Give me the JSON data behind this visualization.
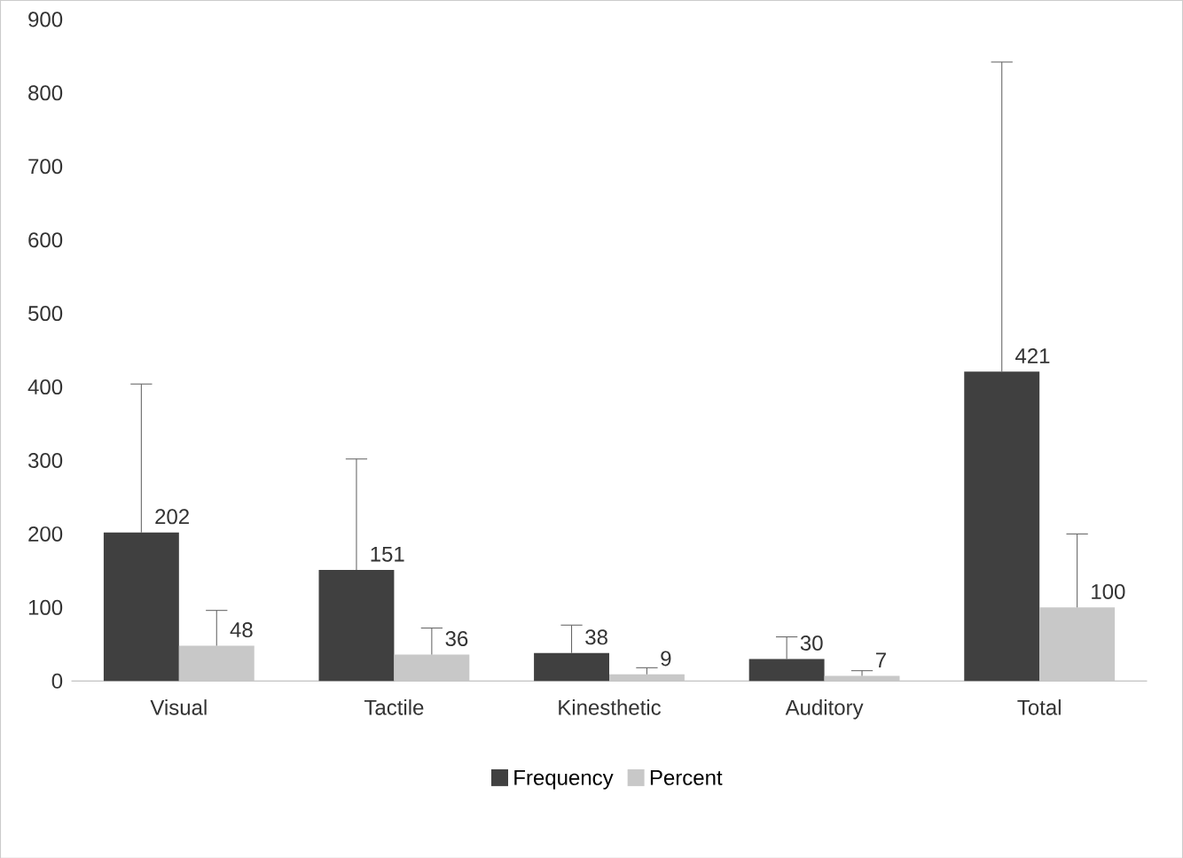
{
  "chart_data": {
    "type": "bar",
    "categories": [
      "Visual",
      "Tactile",
      "Kinesthetic",
      "Auditory",
      "Total"
    ],
    "series": [
      {
        "name": "Frequency",
        "color": "#404040",
        "values": [
          202,
          151,
          38,
          30,
          421
        ],
        "errors": [
          [
            202,
            404
          ],
          [
            151,
            302
          ],
          [
            38,
            76
          ],
          [
            30,
            60
          ],
          [
            421,
            842
          ]
        ]
      },
      {
        "name": "Percent",
        "color": "#c8c8c8",
        "values": [
          48,
          36,
          9,
          7,
          100
        ],
        "errors": [
          [
            48,
            96
          ],
          [
            36,
            72
          ],
          [
            9,
            18
          ],
          [
            7,
            14
          ],
          [
            100,
            200
          ]
        ]
      }
    ],
    "ylim": [
      0,
      900
    ],
    "yticks": [
      0,
      100,
      200,
      300,
      400,
      500,
      600,
      700,
      800,
      900
    ],
    "grid": false,
    "legend": "bottom",
    "data_labels": true
  }
}
